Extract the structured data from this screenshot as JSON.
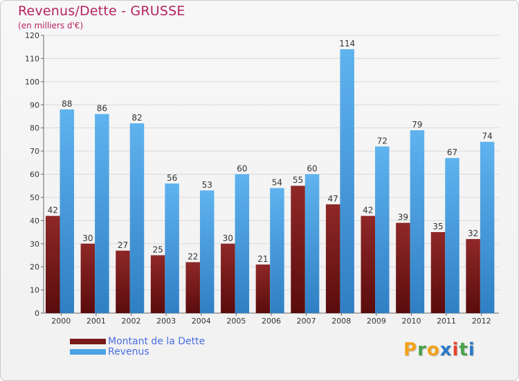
{
  "title": "Revenus/Dette - GRUSSE",
  "subtitle": "(en milliers d'€)",
  "colors": {
    "debt": "#7a1a1a",
    "revenue": "#4ba3e3",
    "title": "#b5225f",
    "legend_text": "#4a6ee0"
  },
  "legend": {
    "debt_label": "Montant de la Dette",
    "revenue_label": "Revenus"
  },
  "logo": {
    "letters": [
      "P",
      "r",
      "o",
      "x",
      "i",
      "t",
      "i"
    ],
    "colors": [
      "#f4a21b",
      "#49a24a",
      "#f4a21b",
      "#2a79c9",
      "#e8432a",
      "#49a24a",
      "#2a79c9"
    ]
  },
  "chart_data": {
    "type": "bar",
    "title": "Revenus/Dette - GRUSSE",
    "ylabel": "(en milliers d'€)",
    "xlabel": "",
    "ylim": [
      0,
      120
    ],
    "yticks": [
      0,
      10,
      20,
      30,
      40,
      50,
      60,
      70,
      80,
      90,
      100,
      110,
      120
    ],
    "grid": true,
    "legend_position": "bottom-left",
    "categories": [
      "2000",
      "2001",
      "2002",
      "2003",
      "2004",
      "2005",
      "2006",
      "2007",
      "2008",
      "2009",
      "2010",
      "2011",
      "2012"
    ],
    "series": [
      {
        "name": "Montant de la Dette",
        "values": [
          42,
          30,
          27,
          25,
          22,
          30,
          21,
          55,
          47,
          42,
          39,
          35,
          32
        ]
      },
      {
        "name": "Revenus",
        "values": [
          88,
          86,
          82,
          56,
          53,
          60,
          54,
          60,
          114,
          72,
          79,
          67,
          74
        ]
      }
    ]
  }
}
